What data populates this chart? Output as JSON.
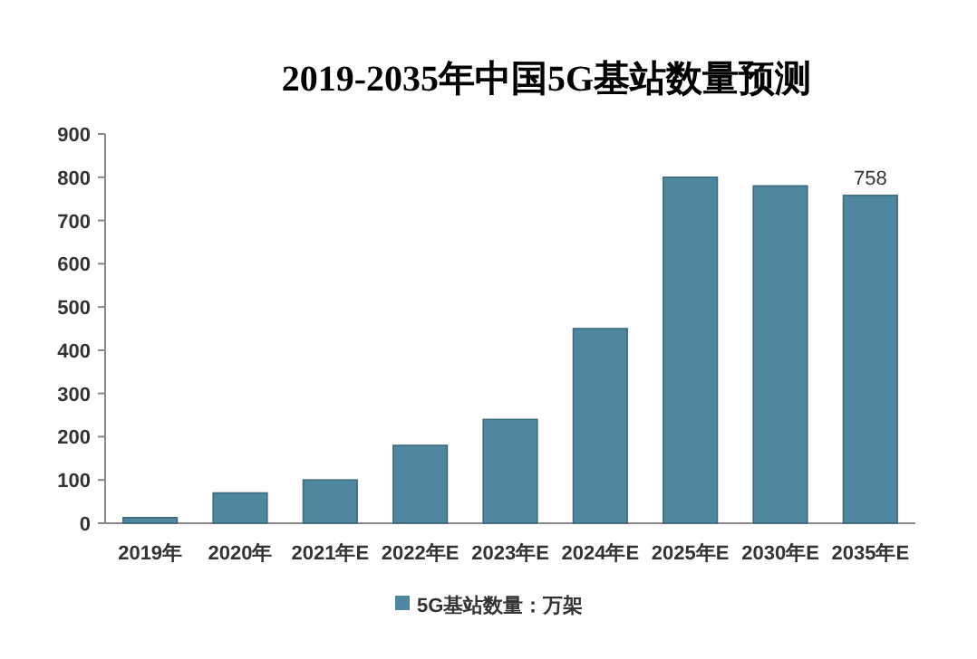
{
  "chart_data": {
    "type": "bar",
    "title": "2019-2035年中国5G基站数量预测",
    "categories": [
      "2019年",
      "2020年",
      "2021年E",
      "2022年E",
      "2023年E",
      "2024年E",
      "2025年E",
      "2030年E",
      "2035年E"
    ],
    "series": [
      {
        "name": "5G基站数量：万架",
        "color": "#4f86a0",
        "values": [
          13,
          70,
          100,
          180,
          240,
          450,
          800,
          780,
          758
        ]
      }
    ],
    "value_labels": [
      null,
      null,
      null,
      null,
      null,
      null,
      null,
      null,
      "758"
    ],
    "ylim": [
      0,
      900
    ],
    "yticks": [
      0,
      100,
      200,
      300,
      400,
      500,
      600,
      700,
      800,
      900
    ],
    "legend": "bottom",
    "grid": false
  }
}
